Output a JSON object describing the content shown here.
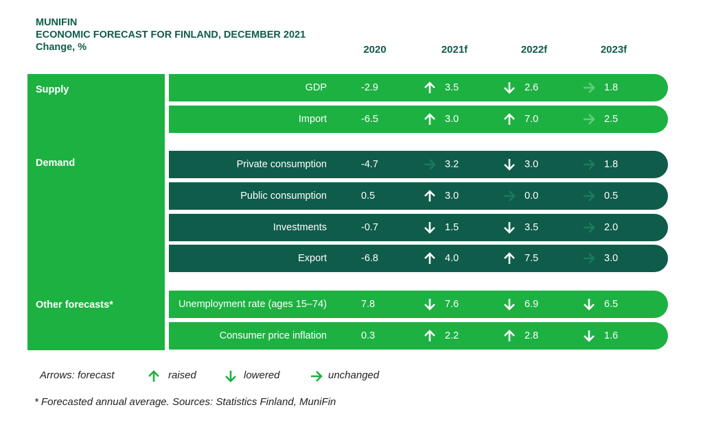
{
  "header": {
    "line1": "MUNIFIN",
    "line2": "ECONOMIC FORECAST FOR FINLAND, DECEMBER 2021",
    "line3": "Change, %"
  },
  "colors": {
    "light_green": "#1db142",
    "dark_green": "#0f5c4a",
    "white": "#ffffff"
  },
  "chart_data": {
    "type": "table",
    "columns": [
      "2020",
      "2021f",
      "2022f",
      "2023f"
    ],
    "groups": [
      {
        "name": "Supply",
        "shade": "light",
        "rows": [
          {
            "label": "GDP",
            "values": [
              "-2.9",
              "3.5",
              "2.6",
              "1.8"
            ],
            "arrows": [
              "up",
              "down",
              "unchanged"
            ]
          },
          {
            "label": "Import",
            "values": [
              "-6.5",
              "3.0",
              "7.0",
              "2.5"
            ],
            "arrows": [
              "up",
              "up",
              "unchanged"
            ]
          }
        ]
      },
      {
        "name": "Demand",
        "shade": "dark",
        "rows": [
          {
            "label": "Private consumption",
            "values": [
              "-4.7",
              "3.2",
              "3.0",
              "1.8"
            ],
            "arrows": [
              "unchanged",
              "down",
              "unchanged"
            ]
          },
          {
            "label": "Public consumption",
            "values": [
              "0.5",
              "3.0",
              "0.0",
              "0.5"
            ],
            "arrows": [
              "up",
              "unchanged",
              "unchanged"
            ]
          },
          {
            "label": "Investments",
            "values": [
              "-0.7",
              "1.5",
              "3.5",
              "2.0"
            ],
            "arrows": [
              "down",
              "down",
              "unchanged"
            ]
          },
          {
            "label": "Export",
            "values": [
              "-6.8",
              "4.0",
              "7.5",
              "3.0"
            ],
            "arrows": [
              "up",
              "up",
              "unchanged"
            ]
          }
        ]
      },
      {
        "name": "Other forecasts*",
        "shade": "light",
        "rows": [
          {
            "label": "Unemployment rate (ages 15–74)",
            "values": [
              "7.8",
              "7.6",
              "6.9",
              "6.5"
            ],
            "arrows": [
              "down",
              "down",
              "down"
            ]
          },
          {
            "label": "Consumer price inflation",
            "values": [
              "0.3",
              "2.2",
              "2.8",
              "1.6"
            ],
            "arrows": [
              "up",
              "up",
              "down"
            ]
          }
        ]
      }
    ]
  },
  "legend": {
    "intro": "Arrows: forecast",
    "raised": "raised",
    "lowered": "lowered",
    "unchanged": "unchanged"
  },
  "footnote": "* Forecasted annual average. Sources: Statistics Finland, MuniFin"
}
